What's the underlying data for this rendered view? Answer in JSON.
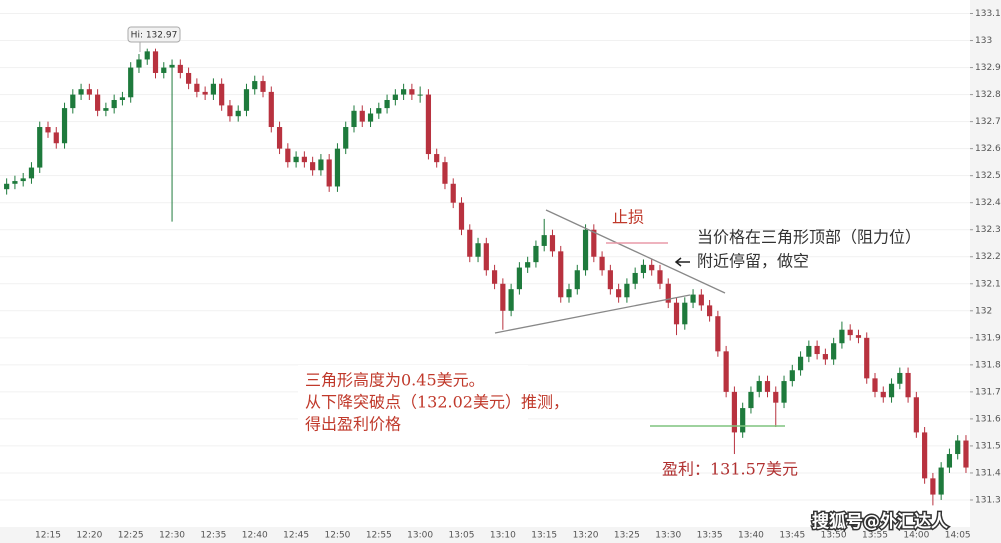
{
  "chart_data": {
    "type": "candlestick",
    "up_color": "#1e7a3c",
    "down_color": "#b8323f",
    "ylim": [
      131.2,
      133.15
    ],
    "yticks": [
      131.3,
      131.4,
      131.5,
      131.6,
      131.7,
      131.8,
      131.9,
      132,
      132.1,
      132.2,
      132.3,
      132.4,
      132.5,
      132.6,
      132.7,
      132.8,
      132.9,
      133,
      133.1
    ],
    "grid": true,
    "categories": [
      null,
      null,
      null,
      null,
      null,
      "12:15",
      null,
      null,
      null,
      null,
      "12:20",
      null,
      null,
      null,
      null,
      "12:25",
      null,
      null,
      null,
      null,
      "12:30",
      null,
      null,
      null,
      null,
      "12:35",
      null,
      null,
      null,
      null,
      "12:40",
      null,
      null,
      null,
      null,
      "12:45",
      null,
      null,
      null,
      null,
      "12:50",
      null,
      null,
      null,
      null,
      "12:55",
      null,
      null,
      null,
      null,
      "13:00",
      null,
      null,
      null,
      null,
      "13:05",
      null,
      null,
      null,
      null,
      "13:10",
      null,
      null,
      null,
      null,
      "13:15",
      null,
      null,
      null,
      null,
      "13:20",
      null,
      null,
      null,
      null,
      "13:25",
      null,
      null,
      null,
      null,
      "13:30",
      null,
      null,
      null,
      null,
      "13:35",
      null,
      null,
      null,
      null,
      "13:40",
      null,
      null,
      null,
      null,
      "13:45",
      null,
      null,
      null,
      null,
      "13:50",
      null,
      null,
      null,
      null,
      "13:55",
      null,
      null,
      null,
      null,
      "14:00",
      null,
      null,
      null,
      null,
      "14:05",
      null
    ],
    "candles": [
      [
        132.45,
        132.49,
        132.43,
        132.47
      ],
      [
        132.47,
        132.5,
        132.45,
        132.48
      ],
      [
        132.48,
        132.51,
        132.46,
        132.49
      ],
      [
        132.49,
        132.55,
        132.47,
        132.53
      ],
      [
        132.53,
        132.7,
        132.51,
        132.68
      ],
      [
        132.68,
        132.7,
        132.64,
        132.66
      ],
      [
        132.66,
        132.68,
        132.6,
        132.62
      ],
      [
        132.62,
        132.77,
        132.6,
        132.75
      ],
      [
        132.75,
        132.82,
        132.73,
        132.8
      ],
      [
        132.8,
        132.84,
        132.78,
        132.82
      ],
      [
        132.82,
        132.84,
        132.78,
        132.8
      ],
      [
        132.8,
        132.82,
        132.72,
        132.74
      ],
      [
        132.74,
        132.77,
        132.72,
        132.75
      ],
      [
        132.75,
        132.8,
        132.73,
        132.78
      ],
      [
        132.78,
        132.81,
        132.76,
        132.79
      ],
      [
        132.79,
        132.92,
        132.77,
        132.9
      ],
      [
        132.9,
        132.95,
        132.88,
        132.93
      ],
      [
        132.93,
        132.97,
        132.91,
        132.96
      ],
      [
        132.96,
        132.97,
        132.86,
        132.88
      ],
      [
        132.88,
        132.92,
        132.86,
        132.9
      ],
      [
        132.9,
        132.93,
        132.33,
        132.91
      ],
      [
        132.91,
        132.93,
        132.86,
        132.88
      ],
      [
        132.88,
        132.9,
        132.82,
        132.84
      ],
      [
        132.84,
        132.86,
        132.79,
        132.81
      ],
      [
        132.81,
        132.83,
        132.78,
        132.8
      ],
      [
        132.8,
        132.86,
        132.78,
        132.84
      ],
      [
        132.84,
        132.86,
        132.74,
        132.76
      ],
      [
        132.76,
        132.78,
        132.7,
        132.72
      ],
      [
        132.72,
        132.76,
        132.7,
        132.74
      ],
      [
        132.74,
        132.84,
        132.72,
        132.82
      ],
      [
        132.82,
        132.87,
        132.8,
        132.85
      ],
      [
        132.85,
        132.87,
        132.79,
        132.81
      ],
      [
        132.81,
        132.83,
        132.66,
        132.68
      ],
      [
        132.68,
        132.7,
        132.58,
        132.6
      ],
      [
        132.6,
        132.62,
        132.53,
        132.55
      ],
      [
        132.55,
        132.59,
        132.53,
        132.57
      ],
      [
        132.57,
        132.59,
        132.53,
        132.55
      ],
      [
        132.55,
        132.57,
        132.5,
        132.52
      ],
      [
        132.52,
        132.58,
        132.5,
        132.56
      ],
      [
        132.56,
        132.58,
        132.44,
        132.46
      ],
      [
        132.46,
        132.62,
        132.44,
        132.6
      ],
      [
        132.6,
        132.7,
        132.58,
        132.68
      ],
      [
        132.68,
        132.76,
        132.66,
        132.74
      ],
      [
        132.74,
        132.76,
        132.68,
        132.7
      ],
      [
        132.7,
        132.75,
        132.68,
        132.73
      ],
      [
        132.73,
        132.77,
        132.71,
        132.75
      ],
      [
        132.75,
        132.8,
        132.73,
        132.78
      ],
      [
        132.78,
        132.82,
        132.76,
        132.8
      ],
      [
        132.8,
        132.84,
        132.78,
        132.82
      ],
      [
        132.82,
        132.84,
        132.78,
        132.8
      ],
      [
        132.8,
        132.83,
        132.77,
        132.8
      ],
      [
        132.8,
        132.82,
        132.56,
        132.58
      ],
      [
        132.58,
        132.6,
        132.53,
        132.55
      ],
      [
        132.55,
        132.57,
        132.45,
        132.47
      ],
      [
        132.47,
        132.49,
        132.38,
        132.4
      ],
      [
        132.4,
        132.42,
        132.28,
        132.3
      ],
      [
        132.3,
        132.32,
        132.18,
        132.2
      ],
      [
        132.2,
        132.27,
        132.18,
        132.25
      ],
      [
        132.25,
        132.27,
        132.13,
        132.15
      ],
      [
        132.15,
        132.17,
        132.08,
        132.1
      ],
      [
        132.1,
        132.12,
        131.93,
        132
      ],
      [
        132,
        132.1,
        131.98,
        132.08
      ],
      [
        132.08,
        132.18,
        132.06,
        132.16
      ],
      [
        132.16,
        132.2,
        132.14,
        132.18
      ],
      [
        132.18,
        132.26,
        132.16,
        132.24
      ],
      [
        132.24,
        132.34,
        132.22,
        132.28
      ],
      [
        132.28,
        132.3,
        132.2,
        132.22
      ],
      [
        132.22,
        132.24,
        132.03,
        132.05
      ],
      [
        132.05,
        132.1,
        132.03,
        132.08
      ],
      [
        132.08,
        132.17,
        132.06,
        132.15
      ],
      [
        132.15,
        132.32,
        132.13,
        132.3
      ],
      [
        132.3,
        132.32,
        132.18,
        132.2
      ],
      [
        132.2,
        132.22,
        132.13,
        132.15
      ],
      [
        132.15,
        132.17,
        132.06,
        132.08
      ],
      [
        132.08,
        132.1,
        132.03,
        132.05
      ],
      [
        132.05,
        132.12,
        132.03,
        132.1
      ],
      [
        132.1,
        132.16,
        132.08,
        132.14
      ],
      [
        132.14,
        132.19,
        132.12,
        132.17
      ],
      [
        132.17,
        132.19,
        132.13,
        132.15
      ],
      [
        132.15,
        132.17,
        132.08,
        132.1
      ],
      [
        132.1,
        132.12,
        132.01,
        132.03
      ],
      [
        132.03,
        132.05,
        131.91,
        131.95
      ],
      [
        131.95,
        132.05,
        131.93,
        132.03
      ],
      [
        132.03,
        132.08,
        132.01,
        132.06
      ],
      [
        132.06,
        132.08,
        132,
        132.02
      ],
      [
        132.02,
        132.04,
        131.96,
        131.98
      ],
      [
        131.98,
        132,
        131.83,
        131.85
      ],
      [
        131.85,
        131.87,
        131.68,
        131.7
      ],
      [
        131.7,
        131.72,
        131.47,
        131.55
      ],
      [
        131.55,
        131.66,
        131.53,
        131.64
      ],
      [
        131.64,
        131.72,
        131.62,
        131.7
      ],
      [
        131.7,
        131.76,
        131.68,
        131.74
      ],
      [
        131.74,
        131.76,
        131.68,
        131.7
      ],
      [
        131.7,
        131.72,
        131.57,
        131.66
      ],
      [
        131.66,
        131.76,
        131.64,
        131.74
      ],
      [
        131.74,
        131.8,
        131.72,
        131.78
      ],
      [
        131.78,
        131.85,
        131.76,
        131.83
      ],
      [
        131.83,
        131.89,
        131.81,
        131.87
      ],
      [
        131.87,
        131.89,
        131.82,
        131.84
      ],
      [
        131.84,
        131.86,
        131.8,
        131.82
      ],
      [
        131.82,
        131.9,
        131.8,
        131.88
      ],
      [
        131.88,
        131.96,
        131.86,
        131.93
      ],
      [
        131.93,
        131.95,
        131.89,
        131.91
      ],
      [
        131.91,
        131.93,
        131.88,
        131.9
      ],
      [
        131.9,
        131.92,
        131.73,
        131.75
      ],
      [
        131.75,
        131.77,
        131.68,
        131.7
      ],
      [
        131.7,
        131.72,
        131.66,
        131.68
      ],
      [
        131.68,
        131.75,
        131.66,
        131.73
      ],
      [
        131.73,
        131.79,
        131.71,
        131.77
      ],
      [
        131.77,
        131.79,
        131.66,
        131.68
      ],
      [
        131.68,
        131.7,
        131.53,
        131.55
      ],
      [
        131.55,
        131.57,
        131.36,
        131.38
      ],
      [
        131.38,
        131.4,
        131.28,
        131.32
      ],
      [
        131.32,
        131.44,
        131.3,
        131.42
      ],
      [
        131.42,
        131.49,
        131.4,
        131.47
      ],
      [
        131.47,
        131.54,
        131.45,
        131.52
      ],
      [
        131.52,
        131.54,
        131.4,
        131.42
      ]
    ],
    "hi_label": "Hi: 132.97",
    "annotations": {
      "stop_loss": "止损",
      "short_note": [
        "当价格在三角形顶部（阻力位）",
        "附近停留，做空"
      ],
      "target_note": [
        "三角形高度为0.45美元。",
        "从下降突破点（132.02美元）推测，",
        "得出盈利价格"
      ],
      "profit": "盈利：131.57美元"
    },
    "watermark": "搜狐号@外汇达人"
  }
}
